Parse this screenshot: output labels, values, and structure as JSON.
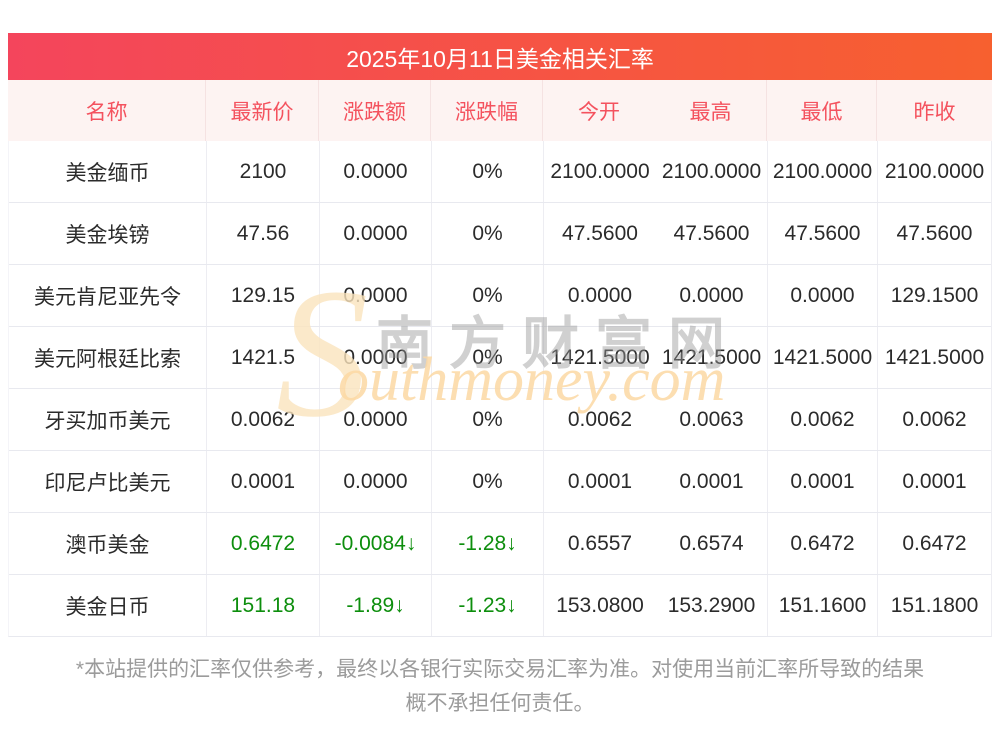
{
  "title": "2025年10月11日美金相关汇率",
  "table": {
    "headers": [
      "名称",
      "最新价",
      "涨跌额",
      "涨跌幅",
      "今开",
      "最高",
      "最低",
      "昨收"
    ],
    "rows": [
      {
        "name": "美金缅币",
        "latest": "2100",
        "change": "0.0000",
        "change_pct": "0%",
        "open": "2100.0000",
        "high": "2100.0000",
        "low": "2100.0000",
        "prev_close": "2100.0000",
        "trend": "flat"
      },
      {
        "name": "美金埃镑",
        "latest": "47.56",
        "change": "0.0000",
        "change_pct": "0%",
        "open": "47.5600",
        "high": "47.5600",
        "low": "47.5600",
        "prev_close": "47.5600",
        "trend": "flat"
      },
      {
        "name": "美元肯尼亚先令",
        "latest": "129.15",
        "change": "0.0000",
        "change_pct": "0%",
        "open": "0.0000",
        "high": "0.0000",
        "low": "0.0000",
        "prev_close": "129.1500",
        "trend": "flat"
      },
      {
        "name": "美元阿根廷比索",
        "latest": "1421.5",
        "change": "0.0000",
        "change_pct": "0%",
        "open": "1421.5000",
        "high": "1421.5000",
        "low": "1421.5000",
        "prev_close": "1421.5000",
        "trend": "flat"
      },
      {
        "name": "牙买加币美元",
        "latest": "0.0062",
        "change": "0.0000",
        "change_pct": "0%",
        "open": "0.0062",
        "high": "0.0063",
        "low": "0.0062",
        "prev_close": "0.0062",
        "trend": "flat"
      },
      {
        "name": "印尼卢比美元",
        "latest": "0.0001",
        "change": "0.0000",
        "change_pct": "0%",
        "open": "0.0001",
        "high": "0.0001",
        "low": "0.0001",
        "prev_close": "0.0001",
        "trend": "flat"
      },
      {
        "name": "澳币美金",
        "latest": "0.6472",
        "change": "-0.0084↓",
        "change_pct": "-1.28↓",
        "open": "0.6557",
        "high": "0.6574",
        "low": "0.6472",
        "prev_close": "0.6472",
        "trend": "down"
      },
      {
        "name": "美金日币",
        "latest": "151.18",
        "change": "-1.89↓",
        "change_pct": "-1.23↓",
        "open": "153.0800",
        "high": "153.2900",
        "low": "151.1600",
        "prev_close": "151.1800",
        "trend": "down"
      }
    ]
  },
  "watermark": {
    "swoosh": "S",
    "site_name_cn": "南方财富网",
    "site_name_en": "outhmoney.com"
  },
  "footer": {
    "line1": "*本站提供的汇率仅供参考，最终以各银行实际交易汇率为准。对使用当前汇率所导致的结果",
    "line2": "概不承担任何责任。"
  },
  "colors": {
    "title_gradient_start": "#f4455c",
    "title_gradient_end": "#f7602f",
    "header_bg": "#fdf3f2",
    "header_text": "#f4525e",
    "down_green": "#0d8e0d",
    "body_text": "#2b2b2b",
    "footer_text": "#9b9b9b"
  }
}
